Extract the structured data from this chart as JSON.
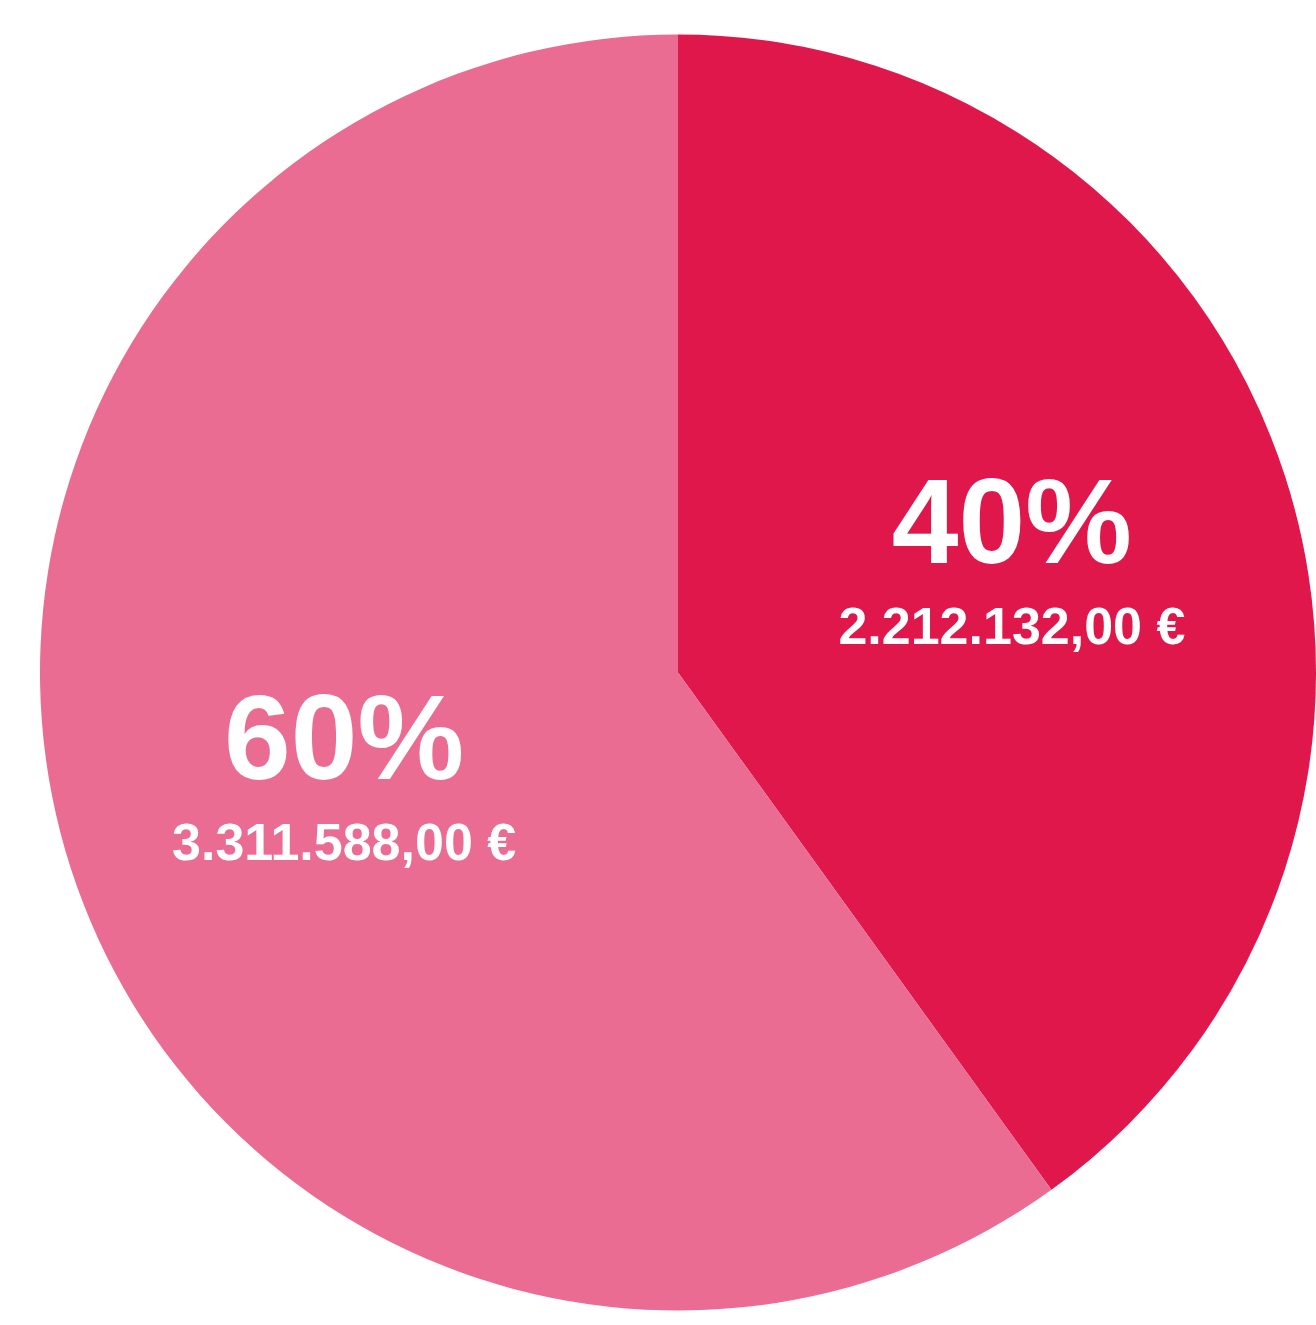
{
  "chart_data": {
    "type": "pie",
    "categories": [
      null,
      null
    ],
    "values": [
      2212132,
      3311588
    ],
    "colors": [
      "#e0174a",
      "#ea6c93"
    ],
    "value_labels": [
      "40%\n2.212.132,00 €",
      "60%\n3.311.588,00 €"
    ],
    "legend": false
  }
}
